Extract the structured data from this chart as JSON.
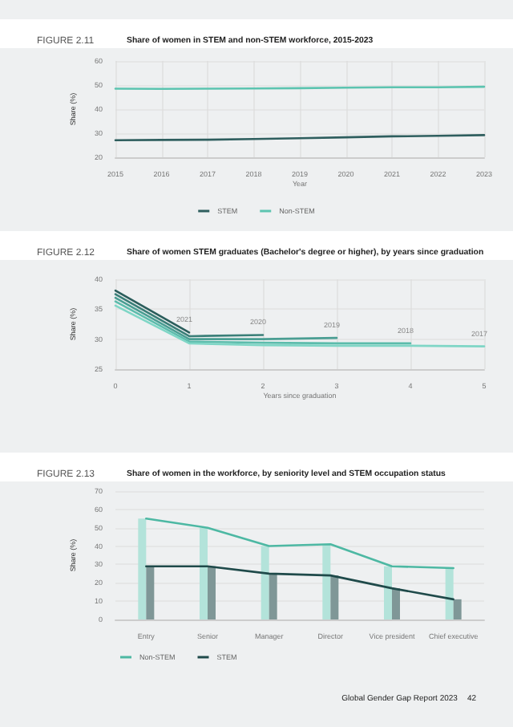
{
  "chart_data": [
    {
      "type": "line",
      "subtitle": "FIGURE 2.11",
      "title": "Share of women in STEM and non-STEM workforce, 2015-2023",
      "xlabel": "Year",
      "ylabel": "Share (%)",
      "x": [
        2015,
        2016,
        2017,
        2018,
        2019,
        2020,
        2021,
        2022,
        2023
      ],
      "xlim": [
        2015,
        2023
      ],
      "xticks": [
        2015,
        2016,
        2017,
        2018,
        2019,
        2020,
        2021,
        2022,
        2023
      ],
      "ylim": [
        20,
        60
      ],
      "yticks": [
        20,
        30,
        40,
        50,
        60
      ],
      "grid": true,
      "legend": "bottom",
      "marker": "none",
      "line_style": "solid",
      "series": [
        {
          "name": "STEM",
          "color": "#2e5e5e",
          "values": [
            27.1,
            27.2,
            27.3,
            27.6,
            27.9,
            28.3,
            28.7,
            28.9,
            29.2
          ]
        },
        {
          "name": "Non-STEM",
          "color": "#5cc4b0",
          "values": [
            48.5,
            48.4,
            48.5,
            48.6,
            48.7,
            48.9,
            49.1,
            49.1,
            49.3
          ]
        }
      ]
    },
    {
      "type": "line",
      "subtitle": "FIGURE 2.12",
      "title": "Share of women STEM graduates (Bachelor's degree or higher), by years since graduation",
      "xlabel": "Years since graduation",
      "ylabel": "Share (%)",
      "x": [
        0,
        1,
        2,
        3,
        4,
        5
      ],
      "xlim": [
        0,
        5
      ],
      "xticks": [
        0,
        1,
        2,
        3,
        4,
        5
      ],
      "ylim": [
        25,
        40
      ],
      "yticks": [
        25,
        30,
        35,
        40
      ],
      "grid": true,
      "legend": false,
      "marker": "none",
      "line_style": "solid",
      "series": [
        {
          "name": "2021",
          "color": "#2b5e5c",
          "x": [
            0,
            1
          ],
          "values": [
            38.1,
            31.1
          ]
        },
        {
          "name": "2020",
          "color": "#3a7f78",
          "x": [
            0,
            1,
            2
          ],
          "values": [
            37.5,
            30.5,
            30.7
          ]
        },
        {
          "name": "2019",
          "color": "#4a9e93",
          "x": [
            0,
            1,
            2,
            3
          ],
          "values": [
            36.9,
            30.0,
            30.0,
            30.2
          ]
        },
        {
          "name": "2018",
          "color": "#5cbcac",
          "x": [
            0,
            1,
            2,
            3,
            4
          ],
          "values": [
            36.3,
            29.6,
            29.4,
            29.3,
            29.3
          ]
        },
        {
          "name": "2017",
          "color": "#7fd6c6",
          "values": [
            35.6,
            29.3,
            29.0,
            28.9,
            28.9,
            28.8
          ]
        }
      ]
    },
    {
      "type": "bar",
      "subtitle": "FIGURE 2.13",
      "title": "Share of women in the workforce, by seniority level and STEM occupation status",
      "ylabel": "Share (%)",
      "categories": [
        "Entry",
        "Senior",
        "Manager",
        "Director",
        "Vice president",
        "Chief executive"
      ],
      "ylim": [
        0,
        70
      ],
      "yticks": [
        0,
        10,
        20,
        30,
        40,
        50,
        60,
        70
      ],
      "grid": "y",
      "legend": "bottom left",
      "marker": "none",
      "line_style": "solid",
      "annotations": [
        "Global Gender Gap Report 2023",
        "42"
      ],
      "series": [
        {
          "color": "#b3e3da",
          "values": [
            55,
            50,
            40,
            41,
            29,
            28
          ]
        },
        {
          "color": "#7f9797",
          "values": [
            29,
            29,
            25,
            24,
            17,
            11
          ]
        },
        {
          "type": "line",
          "name": "Non-STEM",
          "color": "#4db8a3",
          "values": [
            55,
            50,
            40,
            41,
            29,
            28
          ]
        },
        {
          "type": "line",
          "name": "STEM",
          "color": "#1f4a4a",
          "values": [
            29,
            29,
            25,
            24,
            17,
            11
          ]
        }
      ]
    }
  ]
}
